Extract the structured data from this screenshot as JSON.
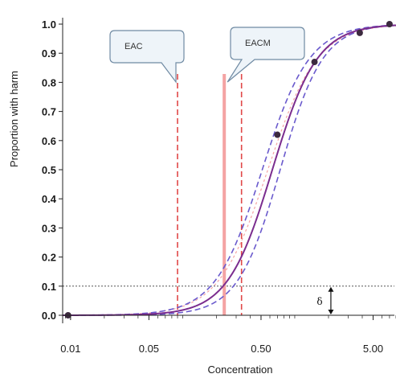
{
  "chart_data": {
    "type": "line",
    "title": "",
    "xlabel": "Concentration",
    "ylabel": "Proportion with harm",
    "x_scale": "log",
    "xlim": [
      0.0085,
      8.0
    ],
    "ylim": [
      0.0,
      1.0
    ],
    "x_ticks": [
      {
        "value": 0.01,
        "label": "0.01"
      },
      {
        "value": 0.05,
        "label": "0.05"
      },
      {
        "value": 0.5,
        "label": "0.50"
      },
      {
        "value": 5.0,
        "label": "5.00"
      }
    ],
    "y_ticks": [
      {
        "value": 0.0,
        "label": "0.0"
      },
      {
        "value": 0.1,
        "label": "0.1"
      },
      {
        "value": 0.2,
        "label": "0.2"
      },
      {
        "value": 0.3,
        "label": "0.3"
      },
      {
        "value": 0.4,
        "label": "0.4"
      },
      {
        "value": 0.5,
        "label": "0.5"
      },
      {
        "value": 0.6,
        "label": "0.6"
      },
      {
        "value": 0.7,
        "label": "0.7"
      },
      {
        "value": 0.8,
        "label": "0.8"
      },
      {
        "value": 0.9,
        "label": "0.9"
      },
      {
        "value": 1.0,
        "label": "1.0"
      }
    ],
    "grid": false,
    "legend": "none",
    "reference_line": {
      "y": 0.1,
      "style": "dotted",
      "color": "#555555"
    },
    "observed_points": [
      {
        "x": 0.0095,
        "y": 0.0
      },
      {
        "x": 0.7,
        "y": 0.62
      },
      {
        "x": 1.5,
        "y": 0.87
      },
      {
        "x": 3.8,
        "y": 0.97
      },
      {
        "x": 7.0,
        "y": 1.0
      }
    ],
    "curves": [
      {
        "role": "fit",
        "color": "#7b2d8e",
        "dashed": false,
        "log_x50": -0.2,
        "scale": 0.2
      },
      {
        "role": "confidence-upper",
        "color": "#6a5acd",
        "dashed": true,
        "log_x50": -0.29,
        "scale": 0.21
      },
      {
        "role": "confidence-lower",
        "color": "#6a5acd",
        "dashed": true,
        "log_x50": -0.13,
        "scale": 0.19
      },
      {
        "role": "alternative-fit",
        "color": "#f4a3a3",
        "dashed": true,
        "log_x50": -0.24,
        "scale": 0.22
      }
    ],
    "vertical_lines": [
      {
        "x": 0.09,
        "style": "dashed",
        "color": "#e04848"
      },
      {
        "x": 0.235,
        "style": "solid",
        "color": "#f4a3a3"
      },
      {
        "x": 0.335,
        "style": "dashed",
        "color": "#e04848"
      }
    ],
    "callouts": [
      {
        "text": "EAC",
        "target_x": 0.09
      },
      {
        "text": "EACM",
        "target_x": 0.235
      }
    ],
    "delta_annotation": {
      "text": "δ",
      "x": 2.1,
      "y_from": 0.1,
      "y_to": 0.0
    }
  },
  "colors": {
    "axis": "#222222",
    "callout_fill": "#eef4f9",
    "callout_stroke": "#6f8aa3"
  }
}
